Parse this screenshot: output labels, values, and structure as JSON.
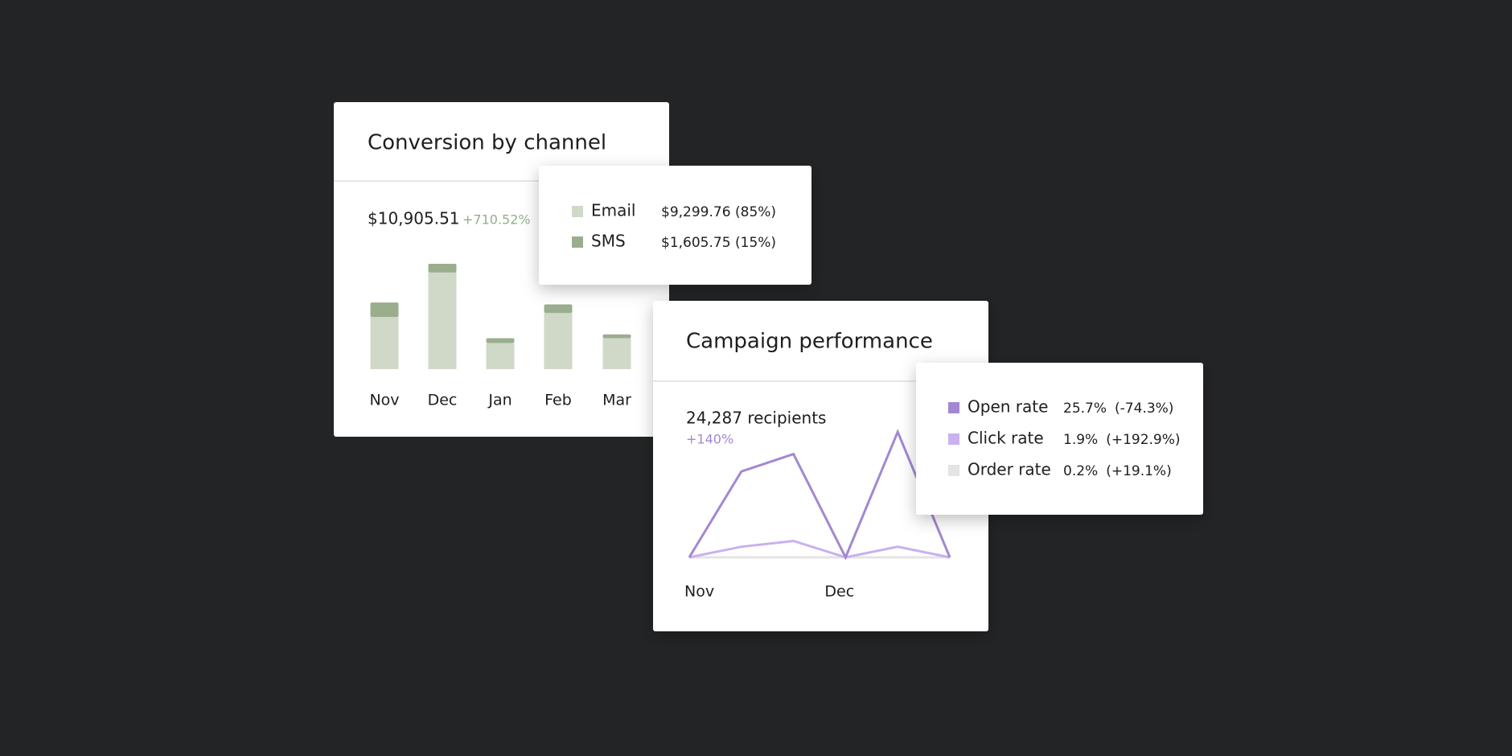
{
  "conversion": {
    "title": "Conversion by channel",
    "total": "$10,905.51",
    "change": "+710.52%",
    "chart_data": {
      "type": "bar",
      "stacked": true,
      "categories": [
        "Nov",
        "Dec",
        "Jan",
        "Feb",
        "Mar"
      ],
      "series": [
        {
          "name": "Email",
          "color": "#d0d8c8",
          "values": [
            54,
            100,
            27,
            58,
            32
          ]
        },
        {
          "name": "SMS",
          "color": "#9aae8e",
          "values": [
            15,
            9,
            5,
            9,
            4
          ]
        }
      ]
    },
    "tooltip": [
      {
        "amount": "$9,299.76",
        "share": "(85%)"
      },
      {
        "amount": "$1,605.75",
        "share": "(15%)"
      }
    ]
  },
  "campaign": {
    "title": "Campaign performance",
    "recipients": "24,287 recipients",
    "change": "+140%",
    "chart_data": {
      "type": "line",
      "categories": [
        "Nov",
        null,
        null,
        "Dec",
        null,
        null
      ],
      "series": [
        {
          "name": "Order rate",
          "color": "#e4e4e4",
          "values": [
            0,
            0,
            0,
            0,
            0,
            0
          ]
        },
        {
          "name": "Click rate",
          "color": "#c9b0ef",
          "values": [
            0,
            11,
            17,
            0,
            11,
            0
          ]
        },
        {
          "name": "Open rate",
          "color": "#a387d2",
          "values": [
            0,
            89,
            107,
            0,
            130,
            0
          ]
        }
      ]
    },
    "tooltip": [
      {
        "amount": "0.2%",
        "share": "(+19.1%)"
      },
      {
        "amount": "1.9%",
        "share": "(+192.9%)"
      },
      {
        "amount": "25.7%",
        "share": "(-74.3%)"
      }
    ]
  }
}
